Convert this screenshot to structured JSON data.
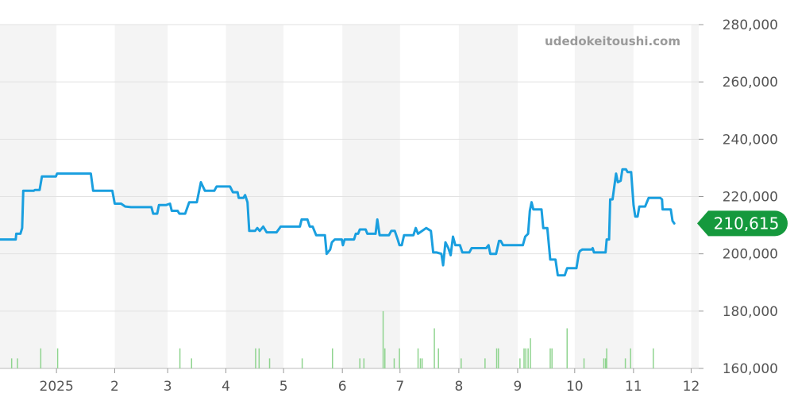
{
  "chart_data": {
    "type": "line",
    "watermark": "udedokeitoushi.com",
    "current_value_label": "210,615",
    "ylim": [
      160000,
      280000
    ],
    "y_ticks": [
      {
        "value": 280000,
        "label": "280,000"
      },
      {
        "value": 260000,
        "label": "260,000"
      },
      {
        "value": 240000,
        "label": "240,000"
      },
      {
        "value": 220000,
        "label": "220,000"
      },
      {
        "value": 200000,
        "label": "200,000"
      },
      {
        "value": 180000,
        "label": "180,000"
      },
      {
        "value": 160000,
        "label": "160,000"
      }
    ],
    "x_ticks": [
      {
        "t": 0.67,
        "label": "2025"
      },
      {
        "t": 1.67,
        "label": "2"
      },
      {
        "t": 2.58,
        "label": "3"
      },
      {
        "t": 3.58,
        "label": "4"
      },
      {
        "t": 4.57,
        "label": "5"
      },
      {
        "t": 5.58,
        "label": "6"
      },
      {
        "t": 6.57,
        "label": "7"
      },
      {
        "t": 7.58,
        "label": "8"
      },
      {
        "t": 8.59,
        "label": "9"
      },
      {
        "t": 9.57,
        "label": "10"
      },
      {
        "t": 10.58,
        "label": "11"
      },
      {
        "t": 11.57,
        "label": "12"
      }
    ],
    "x_range": [
      -0.3,
      11.7
    ],
    "shaded_months": [
      [
        -0.3,
        0.67
      ],
      [
        1.67,
        2.58
      ],
      [
        3.58,
        4.57
      ],
      [
        5.58,
        6.57
      ],
      [
        7.58,
        8.59
      ],
      [
        9.57,
        10.58
      ],
      [
        11.57,
        11.7
      ]
    ],
    "colors": {
      "line": "#1a9fdf",
      "volume": "#8fd48f",
      "badge": "#15993d",
      "shade": "#f4f4f4",
      "grid": "#e2e2e2"
    },
    "series": [
      {
        "points": [
          [
            -0.3,
            205000
          ],
          [
            -0.03,
            205000
          ],
          [
            -0.02,
            207000
          ],
          [
            0.05,
            207000
          ],
          [
            0.08,
            209000
          ],
          [
            0.1,
            222000
          ],
          [
            0.28,
            222000
          ],
          [
            0.3,
            222300
          ],
          [
            0.38,
            222300
          ],
          [
            0.42,
            227000
          ],
          [
            0.66,
            227000
          ],
          [
            0.68,
            228000
          ],
          [
            1.26,
            228000
          ],
          [
            1.3,
            222000
          ],
          [
            1.38,
            222000
          ],
          [
            1.63,
            222000
          ],
          [
            1.67,
            217500
          ],
          [
            1.78,
            217500
          ],
          [
            1.85,
            216500
          ],
          [
            1.95,
            216300
          ],
          [
            2.3,
            216300
          ],
          [
            2.33,
            214000
          ],
          [
            2.4,
            214000
          ],
          [
            2.43,
            217000
          ],
          [
            2.55,
            217000
          ],
          [
            2.62,
            217500
          ],
          [
            2.65,
            215000
          ],
          [
            2.75,
            215000
          ],
          [
            2.78,
            214000
          ],
          [
            2.88,
            214000
          ],
          [
            2.95,
            218000
          ],
          [
            3.08,
            218000
          ],
          [
            3.15,
            225000
          ],
          [
            3.22,
            222000
          ],
          [
            3.3,
            222000
          ],
          [
            3.38,
            222000
          ],
          [
            3.42,
            223500
          ],
          [
            3.65,
            223500
          ],
          [
            3.7,
            221500
          ],
          [
            3.78,
            221500
          ],
          [
            3.8,
            219500
          ],
          [
            3.88,
            219500
          ],
          [
            3.91,
            220500
          ],
          [
            3.95,
            218000
          ],
          [
            3.98,
            208000
          ],
          [
            4.08,
            208000
          ],
          [
            4.12,
            209000
          ],
          [
            4.16,
            208000
          ],
          [
            4.22,
            209500
          ],
          [
            4.28,
            207500
          ],
          [
            4.45,
            207500
          ],
          [
            4.52,
            209500
          ],
          [
            4.85,
            209500
          ],
          [
            4.88,
            212000
          ],
          [
            4.98,
            212000
          ],
          [
            5.02,
            209500
          ],
          [
            5.07,
            209500
          ],
          [
            5.13,
            206500
          ],
          [
            5.28,
            206500
          ],
          [
            5.31,
            200000
          ],
          [
            5.33,
            200500
          ],
          [
            5.37,
            201500
          ],
          [
            5.4,
            204000
          ],
          [
            5.45,
            205000
          ],
          [
            5.52,
            205000
          ],
          [
            5.57,
            205000
          ],
          [
            5.59,
            203000
          ],
          [
            5.62,
            205000
          ],
          [
            5.7,
            205000
          ],
          [
            5.78,
            205000
          ],
          [
            5.81,
            207000
          ],
          [
            5.85,
            207000
          ],
          [
            5.88,
            208500
          ],
          [
            5.98,
            208500
          ],
          [
            6.01,
            207000
          ],
          [
            6.15,
            207000
          ],
          [
            6.18,
            212000
          ],
          [
            6.22,
            206500
          ],
          [
            6.38,
            206500
          ],
          [
            6.42,
            208000
          ],
          [
            6.48,
            208000
          ],
          [
            6.53,
            205000
          ],
          [
            6.56,
            203000
          ],
          [
            6.6,
            203000
          ],
          [
            6.64,
            206500
          ],
          [
            6.8,
            206500
          ],
          [
            6.84,
            209000
          ],
          [
            6.88,
            207000
          ],
          [
            7.02,
            209000
          ],
          [
            7.1,
            208000
          ],
          [
            7.14,
            200500
          ],
          [
            7.2,
            200500
          ],
          [
            7.28,
            200000
          ],
          [
            7.31,
            196000
          ],
          [
            7.35,
            204000
          ],
          [
            7.4,
            202000
          ],
          [
            7.44,
            199500
          ],
          [
            7.48,
            206000
          ],
          [
            7.52,
            203000
          ],
          [
            7.6,
            203000
          ],
          [
            7.64,
            200500
          ],
          [
            7.76,
            200500
          ],
          [
            7.8,
            202000
          ],
          [
            8.05,
            202000
          ],
          [
            8.09,
            203000
          ],
          [
            8.12,
            200000
          ],
          [
            8.22,
            200000
          ],
          [
            8.27,
            204500
          ],
          [
            8.3,
            204500
          ],
          [
            8.34,
            203000
          ],
          [
            8.68,
            203000
          ],
          [
            8.72,
            206000
          ],
          [
            8.77,
            207000
          ],
          [
            8.8,
            215000
          ],
          [
            8.83,
            218000
          ],
          [
            8.86,
            215500
          ],
          [
            9.0,
            215500
          ],
          [
            9.03,
            209000
          ],
          [
            9.1,
            209000
          ],
          [
            9.15,
            198000
          ],
          [
            9.24,
            198000
          ],
          [
            9.28,
            192500
          ],
          [
            9.4,
            192500
          ],
          [
            9.44,
            195000
          ],
          [
            9.6,
            195000
          ],
          [
            9.64,
            200000
          ],
          [
            9.66,
            201000
          ],
          [
            9.7,
            201500
          ],
          [
            9.86,
            201500
          ],
          [
            9.88,
            202000
          ],
          [
            9.9,
            200500
          ],
          [
            10.1,
            200500
          ],
          [
            10.12,
            205000
          ],
          [
            10.16,
            205000
          ],
          [
            10.18,
            219000
          ],
          [
            10.22,
            219000
          ],
          [
            10.28,
            228000
          ],
          [
            10.31,
            225000
          ],
          [
            10.36,
            225500
          ],
          [
            10.39,
            229500
          ],
          [
            10.45,
            229500
          ],
          [
            10.48,
            228500
          ],
          [
            10.54,
            228500
          ],
          [
            10.58,
            217000
          ],
          [
            10.61,
            213000
          ],
          [
            10.65,
            213000
          ],
          [
            10.68,
            216500
          ],
          [
            10.78,
            216500
          ],
          [
            10.84,
            219500
          ],
          [
            11.04,
            219500
          ],
          [
            11.07,
            219000
          ],
          [
            11.08,
            215500
          ],
          [
            11.22,
            215500
          ],
          [
            11.25,
            211500
          ],
          [
            11.28,
            210615
          ]
        ]
      }
    ],
    "volume": [
      [
        -0.1,
        0.35
      ],
      [
        0.0,
        0.35
      ],
      [
        0.4,
        0.7
      ],
      [
        0.69,
        0.7
      ],
      [
        2.79,
        0.7
      ],
      [
        2.99,
        0.35
      ],
      [
        4.09,
        0.7
      ],
      [
        4.15,
        0.7
      ],
      [
        4.33,
        0.35
      ],
      [
        4.89,
        0.35
      ],
      [
        5.41,
        0.7
      ],
      [
        5.88,
        0.35
      ],
      [
        5.95,
        0.35
      ],
      [
        6.28,
        2.0
      ],
      [
        6.31,
        0.7
      ],
      [
        6.47,
        0.35
      ],
      [
        6.56,
        0.7
      ],
      [
        6.88,
        0.7
      ],
      [
        6.92,
        0.35
      ],
      [
        6.95,
        0.35
      ],
      [
        7.16,
        1.4
      ],
      [
        7.23,
        0.7
      ],
      [
        7.62,
        0.35
      ],
      [
        8.03,
        0.35
      ],
      [
        8.23,
        0.7
      ],
      [
        8.26,
        0.7
      ],
      [
        8.63,
        0.35
      ],
      [
        8.7,
        0.7
      ],
      [
        8.73,
        0.7
      ],
      [
        8.77,
        0.7
      ],
      [
        8.81,
        1.05
      ],
      [
        9.15,
        0.7
      ],
      [
        9.18,
        0.7
      ],
      [
        9.44,
        1.4
      ],
      [
        9.73,
        0.35
      ],
      [
        10.07,
        0.35
      ],
      [
        10.1,
        0.35
      ],
      [
        10.12,
        0.7
      ],
      [
        10.44,
        0.35
      ],
      [
        10.53,
        0.7
      ],
      [
        10.92,
        0.7
      ]
    ]
  }
}
